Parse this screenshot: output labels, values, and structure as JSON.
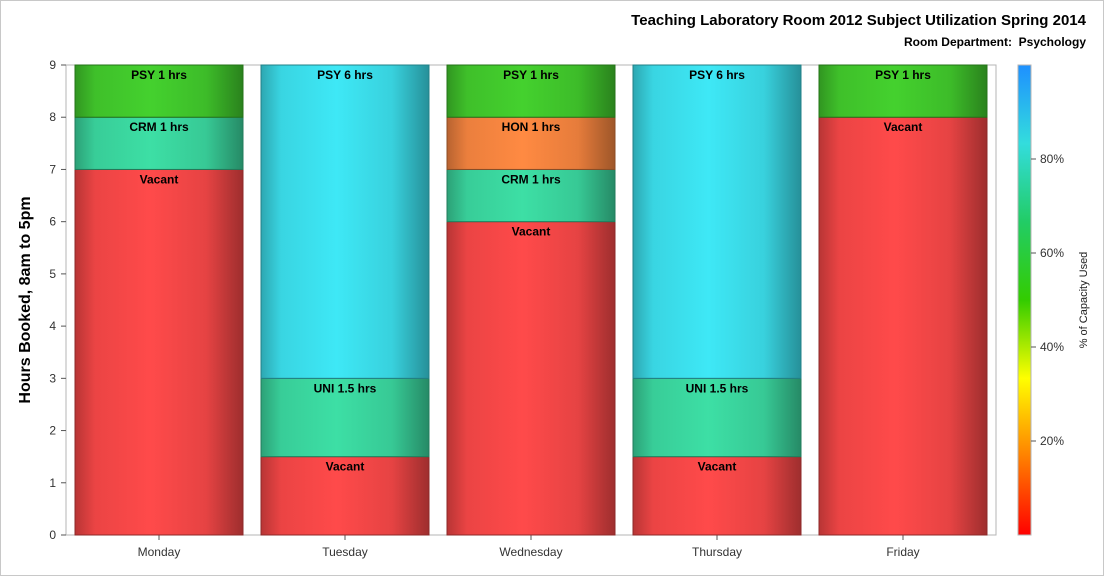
{
  "chart_data": {
    "type": "bar",
    "stacked": true,
    "title": "Teaching Laboratory Room 2012 Subject Utilization Spring 2014",
    "subtitle": "Room Department:  Psychology",
    "xlabel": "",
    "ylabel": "Hours Booked, 8am to 5pm",
    "ylim": [
      0,
      9
    ],
    "yticks": [
      "0",
      "1",
      "2",
      "3",
      "4",
      "5",
      "6",
      "7",
      "8",
      "9"
    ],
    "categories": [
      "Monday",
      "Tuesday",
      "Wednesday",
      "Thursday",
      "Friday"
    ],
    "stacks": [
      [
        {
          "label": "Vacant",
          "hours": 7,
          "color": "#ff4a4a"
        },
        {
          "label": "CRM 1 hrs",
          "hours": 1,
          "color": "#3ddfa5"
        },
        {
          "label": "PSY 1 hrs",
          "hours": 1,
          "color": "#44d12e"
        }
      ],
      [
        {
          "label": "Vacant",
          "hours": 1.5,
          "color": "#ff4a4a"
        },
        {
          "label": "UNI 1.5 hrs",
          "hours": 1.5,
          "color": "#3ddfa5"
        },
        {
          "label": "PSY 6 hrs",
          "hours": 6,
          "color": "#3ee8f6"
        }
      ],
      [
        {
          "label": "Vacant",
          "hours": 6,
          "color": "#ff4a4a"
        },
        {
          "label": "CRM 1 hrs",
          "hours": 1,
          "color": "#3ddfa5"
        },
        {
          "label": "HON 1 hrs",
          "hours": 1,
          "color": "#ff8a42"
        },
        {
          "label": "PSY 1 hrs",
          "hours": 1,
          "color": "#44d12e"
        }
      ],
      [
        {
          "label": "Vacant",
          "hours": 1.5,
          "color": "#ff4a4a"
        },
        {
          "label": "UNI 1.5 hrs",
          "hours": 1.5,
          "color": "#3ddfa5"
        },
        {
          "label": "PSY 6 hrs",
          "hours": 6,
          "color": "#3ee8f6"
        }
      ],
      [
        {
          "label": "Vacant",
          "hours": 8,
          "color": "#ff4a4a"
        },
        {
          "label": "PSY 1 hrs",
          "hours": 1,
          "color": "#44d12e"
        }
      ]
    ],
    "colorbar": {
      "label": "% of Capacity Used",
      "ticks": [
        "20%",
        "40%",
        "60%",
        "80%"
      ],
      "tick_values": [
        20,
        40,
        60,
        80
      ],
      "range": [
        0,
        100
      ],
      "gradient": [
        "#ff0000",
        "#ff8000",
        "#ffff00",
        "#33cc00",
        "#22cc66",
        "#33dddd",
        "#1e90ff"
      ]
    }
  }
}
